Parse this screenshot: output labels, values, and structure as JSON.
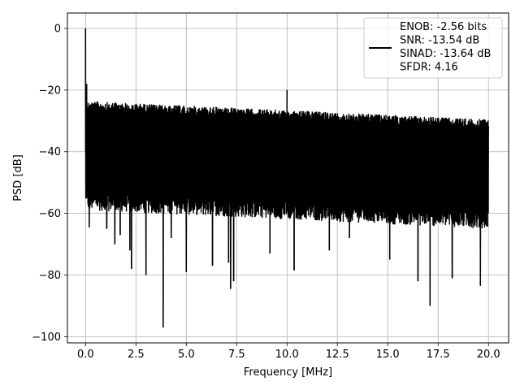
{
  "chart_data": {
    "type": "line",
    "title": "",
    "xlabel": "Frequency [MHz]",
    "ylabel": "PSD [dB]",
    "xlim": [
      -0.9,
      21.0
    ],
    "ylim": [
      -102,
      5
    ],
    "xticks": [
      0.0,
      2.5,
      5.0,
      7.5,
      10.0,
      12.5,
      15.0,
      17.5,
      20.0
    ],
    "xtick_labels": [
      "0.0",
      "2.5",
      "5.0",
      "7.5",
      "10.0",
      "12.5",
      "15.0",
      "17.5",
      "20.0"
    ],
    "yticks": [
      0,
      -20,
      -40,
      -60,
      -80,
      -100
    ],
    "ytick_labels": [
      "0",
      "−20",
      "−40",
      "−60",
      "−80",
      "−100"
    ],
    "grid": true,
    "legend_position": "top-right",
    "series": [
      {
        "name": "ENOB: -2.56 bits\nSNR: -13.54 dB\nSINAD: -13.64 dB\nSFDR: 4.16",
        "color": "#000000",
        "x_range": [
          0.0,
          20.0
        ],
        "noise_ceiling_start": -25,
        "noise_ceiling_end": -31,
        "noise_floor_start": -57,
        "noise_floor_end": -63,
        "spikes": [
          {
            "x": 0.0,
            "y": 0
          },
          {
            "x": 0.05,
            "y": -18
          },
          {
            "x": 10.0,
            "y": -20
          }
        ],
        "dips": [
          {
            "x": 0.18,
            "y": -64.5
          },
          {
            "x": 1.05,
            "y": -65
          },
          {
            "x": 1.45,
            "y": -70
          },
          {
            "x": 1.72,
            "y": -67
          },
          {
            "x": 2.2,
            "y": -72
          },
          {
            "x": 2.28,
            "y": -78
          },
          {
            "x": 3.0,
            "y": -80
          },
          {
            "x": 3.85,
            "y": -97
          },
          {
            "x": 4.25,
            "y": -68
          },
          {
            "x": 5.0,
            "y": -79
          },
          {
            "x": 6.3,
            "y": -77
          },
          {
            "x": 7.1,
            "y": -76
          },
          {
            "x": 7.2,
            "y": -84.5
          },
          {
            "x": 7.35,
            "y": -82
          },
          {
            "x": 9.15,
            "y": -73
          },
          {
            "x": 10.35,
            "y": -78.5
          },
          {
            "x": 12.1,
            "y": -72
          },
          {
            "x": 13.1,
            "y": -68
          },
          {
            "x": 15.1,
            "y": -75
          },
          {
            "x": 16.5,
            "y": -82
          },
          {
            "x": 17.1,
            "y": -90
          },
          {
            "x": 18.2,
            "y": -81
          },
          {
            "x": 19.6,
            "y": -83.5
          }
        ]
      }
    ]
  }
}
